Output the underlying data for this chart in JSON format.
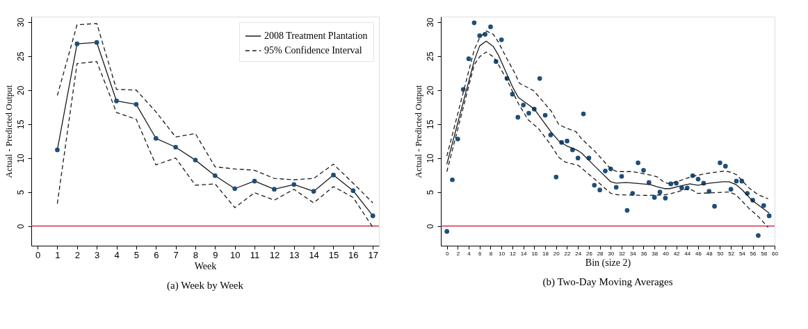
{
  "chart_data": [
    {
      "type": "line",
      "title": "(a) Week by Week",
      "xlabel": "Week",
      "ylabel": "Actual - Predicted Output",
      "xlim": [
        -0.32,
        17.31
      ],
      "xticks": [
        0,
        1,
        2,
        3,
        4,
        5,
        6,
        7,
        8,
        9,
        10,
        11,
        12,
        13,
        14,
        15,
        16,
        17
      ],
      "ylim": [
        -2.9,
        30.8
      ],
      "yticks": [
        0,
        5,
        10,
        15,
        20,
        25,
        30
      ],
      "grid": false,
      "legend": "top right",
      "series": [
        {
          "name": "2008 Treatment Plantation",
          "color": "#1a1a1a",
          "colors": [
            "#1f4e79",
            "#1f4e79",
            "#1f4e79",
            "#1f4e79",
            "#1f4e79",
            "#1f4e79",
            "#1f4e79",
            "#1f4e79",
            "#1f4e79",
            "#1f4e79",
            "#1f4e79",
            "#1f4e79",
            "#1f4e79",
            "#1f4e79",
            "#1f4e79",
            "#1f4e79",
            "#1f4e79"
          ],
          "marker": "circle",
          "line_style": "solid",
          "x": [
            1,
            2,
            3,
            4,
            5,
            6,
            7,
            8,
            9,
            10,
            11,
            12,
            13,
            14,
            15,
            16,
            17
          ],
          "values": [
            11.2,
            26.8,
            27.0,
            18.4,
            17.9,
            12.9,
            11.6,
            9.7,
            7.4,
            5.5,
            6.6,
            5.4,
            6.1,
            5.1,
            7.5,
            5.2,
            1.5
          ]
        },
        {
          "name": "95% Confidence Interval",
          "color": "#1a1a1a",
          "marker": "none",
          "line_style": "dashed",
          "x": [
            1,
            2,
            3,
            4,
            5,
            6,
            7,
            8,
            9,
            10,
            11,
            12,
            13,
            14,
            15,
            16,
            17
          ],
          "values": [
            19.2,
            29.6,
            29.8,
            20.1,
            20.0,
            16.8,
            13.1,
            13.6,
            8.7,
            8.4,
            8.2,
            7.0,
            6.8,
            7.0,
            9.1,
            6.3,
            3.4
          ]
        },
        {
          "color": "#1a1a1a",
          "marker": "none",
          "line_style": "dashed",
          "x": [
            1,
            2,
            3,
            4,
            5,
            6,
            7,
            8,
            9,
            10,
            11,
            12,
            13,
            14,
            15,
            16,
            17
          ],
          "values": [
            3.3,
            23.9,
            24.2,
            16.7,
            15.7,
            9.0,
            10.0,
            6.0,
            6.2,
            2.7,
            4.9,
            3.8,
            5.4,
            3.4,
            5.8,
            4.2,
            -0.2
          ]
        }
      ],
      "ref_lines": [
        {
          "axis": "y",
          "value": 0,
          "color": "#c8102e"
        }
      ]
    },
    {
      "type": "scatter",
      "title": "(b) Two-Day Moving Averages",
      "xlabel": "Bin (size 2)",
      "ylabel": "Actual - Predicted Output",
      "xlim": [
        -1.1,
        60
      ],
      "xticks": [
        0,
        2,
        4,
        6,
        8,
        10,
        12,
        14,
        16,
        18,
        20,
        22,
        24,
        26,
        28,
        30,
        32,
        34,
        36,
        38,
        40,
        42,
        44,
        46,
        48,
        50,
        52,
        54,
        56,
        58,
        60
      ],
      "ylim": [
        -2.9,
        30.8
      ],
      "yticks": [
        0,
        5,
        10,
        15,
        20,
        25,
        30
      ],
      "grid": false,
      "legend": false,
      "series": [
        {
          "color": "#1f4e79",
          "marker": "circle",
          "x": [
            0,
            1,
            2,
            3,
            4,
            5,
            6,
            7,
            8,
            9,
            10,
            11,
            12,
            13,
            14,
            15,
            16,
            17,
            18,
            19,
            20,
            21,
            22,
            23,
            24,
            25,
            26,
            27,
            28,
            29,
            30,
            31,
            32,
            33,
            34,
            35,
            36,
            37,
            38,
            39,
            40,
            41,
            42,
            43,
            44,
            45,
            46,
            47,
            48,
            49,
            50,
            51,
            52,
            53,
            54,
            55,
            56,
            57,
            58,
            59
          ],
          "values": [
            -0.8,
            6.8,
            12.8,
            20.1,
            24.6,
            29.9,
            28.0,
            28.2,
            29.3,
            24.2,
            27.4,
            21.7,
            19.4,
            16.0,
            17.8,
            16.6,
            17.2,
            21.7,
            16.3,
            13.4,
            7.2,
            12.3,
            12.5,
            11.2,
            10.0,
            16.5,
            10.0,
            6.0,
            5.3,
            8.1,
            8.4,
            5.7,
            7.3,
            2.3,
            4.8,
            9.3,
            8.2,
            6.4,
            4.2,
            5.0,
            4.1,
            6.2,
            6.3,
            5.6,
            5.6,
            7.4,
            6.9,
            6.3,
            5.1,
            2.9,
            9.3,
            8.8,
            5.4,
            6.6,
            6.6,
            4.8,
            3.8,
            -1.4,
            3.0,
            1.5
          ]
        },
        {
          "type": "line",
          "color": "#1a1a1a",
          "marker": "none",
          "line_style": "solid",
          "x": [
            0,
            5,
            6,
            7.2,
            8.5,
            9.4,
            12,
            13.1,
            15,
            16,
            19,
            20.5,
            21.9,
            24,
            24.7,
            27.2,
            30,
            31,
            32.8,
            37.2,
            38.4,
            39.8,
            40.8,
            42.8,
            44.5,
            45.9,
            48.1,
            50.5,
            51.7,
            52.9,
            54.1,
            55.7,
            57,
            59
          ],
          "values": [
            9.1,
            24.3,
            26.5,
            27.2,
            26.4,
            25.2,
            20.5,
            18.9,
            17.8,
            17.2,
            13.9,
            12.5,
            11.8,
            11.1,
            10.7,
            8.7,
            6.5,
            6.3,
            6.4,
            6.1,
            5.8,
            5.5,
            5.5,
            5.9,
            6.2,
            6.0,
            6.3,
            6.5,
            6.5,
            6.1,
            5.3,
            3.9,
            3.1,
            1.9
          ]
        },
        {
          "type": "line",
          "color": "#1a1a1a",
          "marker": "none",
          "line_style": "dashed",
          "x": [
            0,
            5,
            6,
            7.2,
            8.5,
            9.4,
            11,
            12.3,
            13.3,
            15.9,
            19.1,
            20.5,
            21.9,
            23.6,
            24.7,
            27.2,
            30,
            31.2,
            34,
            37.2,
            38.6,
            39.8,
            40.8,
            42.8,
            44.9,
            47.3,
            50.9,
            52.1,
            53.1,
            55.3,
            57,
            58.8
          ],
          "values": [
            10.3,
            25.9,
            27.7,
            28.7,
            28.2,
            27.1,
            24.6,
            22.7,
            21.0,
            19.9,
            16.9,
            14.9,
            14.4,
            13.9,
            12.8,
            10.9,
            8.4,
            8.0,
            8.0,
            7.5,
            7.2,
            6.4,
            6.2,
            6.7,
            7.3,
            7.7,
            8.1,
            7.9,
            7.5,
            5.6,
            4.6,
            4.0
          ]
        },
        {
          "type": "line",
          "color": "#1a1a1a",
          "marker": "none",
          "line_style": "dashed",
          "x": [
            0,
            5,
            6,
            7.2,
            8.5,
            9.4,
            11,
            13.1,
            14.9,
            16.7,
            18.7,
            20.5,
            21.7,
            24.1,
            27.2,
            30,
            31.2,
            36.8,
            39.8,
            40.8,
            43.7,
            44.9,
            45.9,
            48.9,
            51.7,
            52.9,
            55.3,
            57,
            58.8
          ],
          "values": [
            8.0,
            23.7,
            24.9,
            25.6,
            24.9,
            23.8,
            21.5,
            18.0,
            15.6,
            14.4,
            12.3,
            10.1,
            9.4,
            8.9,
            6.8,
            4.8,
            4.6,
            4.5,
            4.6,
            4.7,
            5.4,
            5.3,
            4.8,
            4.9,
            5.0,
            4.6,
            2.6,
            1.4,
            -0.2
          ]
        }
      ],
      "ref_lines": [
        {
          "axis": "y",
          "value": 0,
          "color": "#c8102e"
        }
      ]
    }
  ]
}
